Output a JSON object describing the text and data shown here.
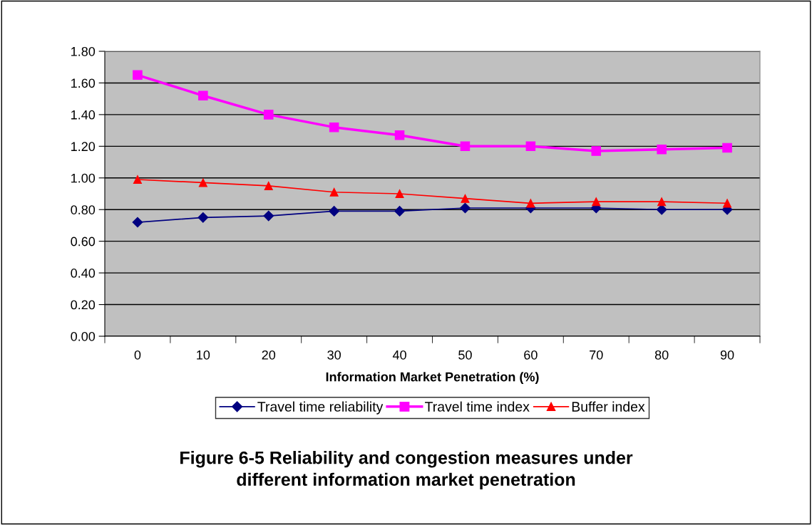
{
  "chart_data": {
    "type": "line",
    "title": "Figure 6-5 Reliability and congestion measures under\ndifferent information market penetration",
    "xlabel": "Information Market Penetration (%)",
    "categories": [
      "0",
      "10",
      "20",
      "30",
      "40",
      "50",
      "60",
      "70",
      "80",
      "90"
    ],
    "series": [
      {
        "name": "Travel time reliability",
        "color": "#000080",
        "marker": "diamond",
        "values": [
          0.72,
          0.75,
          0.76,
          0.79,
          0.79,
          0.81,
          0.81,
          0.81,
          0.8,
          0.8
        ]
      },
      {
        "name": "Travel time index",
        "color": "#ff00ff",
        "marker": "square",
        "values": [
          1.65,
          1.52,
          1.4,
          1.32,
          1.27,
          1.2,
          1.2,
          1.17,
          1.18,
          1.19
        ]
      },
      {
        "name": "Buffer index",
        "color": "#ff0000",
        "marker": "triangle",
        "values": [
          0.99,
          0.97,
          0.95,
          0.91,
          0.9,
          0.87,
          0.84,
          0.85,
          0.85,
          0.84
        ]
      }
    ],
    "ylim": [
      0,
      1.8
    ],
    "yticks": [
      {
        "value": 0,
        "label": "0.00"
      },
      {
        "value": 0.2,
        "label": "0.20"
      },
      {
        "value": 0.4,
        "label": "0.40"
      },
      {
        "value": 0.6,
        "label": "0.60"
      },
      {
        "value": 0.8,
        "label": "0.80"
      },
      {
        "value": 1.0,
        "label": "1.00"
      },
      {
        "value": 1.2,
        "label": "1.20"
      },
      {
        "value": 1.4,
        "label": "1.40"
      },
      {
        "value": 1.6,
        "label": "1.60"
      },
      {
        "value": 1.8,
        "label": "1.80"
      }
    ],
    "grid": "y",
    "legend": "bottom",
    "line_style": "solid"
  }
}
